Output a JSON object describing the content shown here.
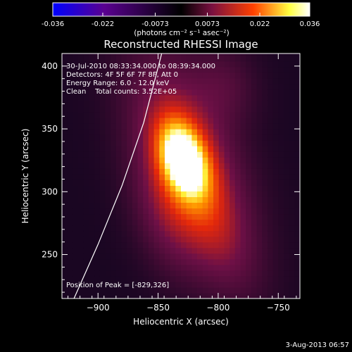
{
  "colorbar": {
    "ticks": [
      "-0.036",
      "-0.022",
      "-0.0073",
      "0.0073",
      "0.022",
      "0.036"
    ],
    "tick_values": [
      -0.036,
      -0.022,
      -0.0073,
      0.0073,
      0.022,
      0.036
    ],
    "range": [
      -0.036,
      0.036
    ],
    "label": "(photons cm⁻² s⁻¹ asec⁻²)",
    "colors": [
      "#0000ff",
      "#5a0090",
      "#000000",
      "#7a1040",
      "#ff4000",
      "#ffff40",
      "#ffffff"
    ]
  },
  "chart_data": {
    "type": "heatmap",
    "title": "Reconstructed RHESSI Image",
    "xlabel": "Heliocentric X (arcsec)",
    "ylabel": "Heliocentric Y (arcsec)",
    "xlim": [
      -930,
      -732
    ],
    "ylim": [
      215,
      410
    ],
    "xticks": [
      -900,
      -850,
      -800,
      -750
    ],
    "yticks": [
      250,
      300,
      350,
      400
    ],
    "x_tick_labels": [
      "−900",
      "−850",
      "−800",
      "−750"
    ],
    "y_tick_labels": [
      "250",
      "300",
      "350",
      "400"
    ],
    "peak": [
      -829,
      326
    ],
    "peak_value": 0.036,
    "limb_curve": [
      [
        -920,
        215
      ],
      [
        -900,
        258
      ],
      [
        -880,
        305
      ],
      [
        -862,
        355
      ],
      [
        -847,
        410
      ]
    ],
    "info_lines": [
      "30-Jul-2010 08:33:34.000 to 08:39:34.000",
      "Detectors: 4F 5F 6F 7F 8F, Att 0",
      "Energy Range: 6.0 - 12.0 keV",
      "Clean    Total counts: 3.52E+05"
    ],
    "peak_label": "Position of Peak = [-829,326]"
  },
  "footer": {
    "timestamp": "3-Aug-2013 06:57"
  }
}
